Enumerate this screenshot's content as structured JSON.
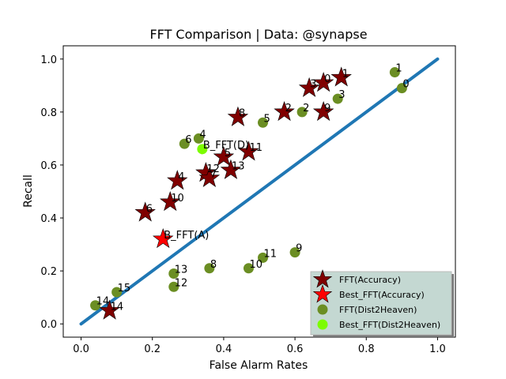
{
  "chart_data": {
    "type": "scatter",
    "title": "FFT Comparison |  Data: @synapse",
    "xlabel": "False Alarm Rates",
    "ylabel": "Recall",
    "xlim": [
      -0.05,
      1.05
    ],
    "ylim": [
      -0.05,
      1.05
    ],
    "xticks": [
      "0.0",
      "0.2",
      "0.4",
      "0.6",
      "0.8",
      "1.0"
    ],
    "yticks": [
      "0.0",
      "0.2",
      "0.4",
      "0.6",
      "0.8",
      "1.0"
    ],
    "diagonal": [
      [
        0,
        0
      ],
      [
        1,
        1
      ]
    ],
    "legend_position": "lower-right",
    "colors": {
      "accuracy": "#800000",
      "best_accuracy": "#ff0000",
      "dist2heaven": "#6b8e23",
      "best_dist2heaven": "#7cfc00",
      "diagonal": "#1f77b4"
    },
    "series": [
      {
        "name": "FFT(Accuracy)",
        "marker": "star",
        "points": [
          {
            "x": 0.73,
            "y": 0.93,
            "label": "1"
          },
          {
            "x": 0.68,
            "y": 0.91,
            "label": "0"
          },
          {
            "x": 0.64,
            "y": 0.89,
            "label": "3"
          },
          {
            "x": 0.68,
            "y": 0.8,
            "label": "9"
          },
          {
            "x": 0.57,
            "y": 0.8,
            "label": "2"
          },
          {
            "x": 0.44,
            "y": 0.78,
            "label": "8"
          },
          {
            "x": 0.47,
            "y": 0.65,
            "label": "11"
          },
          {
            "x": 0.4,
            "y": 0.63,
            "label": "5"
          },
          {
            "x": 0.42,
            "y": 0.58,
            "label": "13"
          },
          {
            "x": 0.35,
            "y": 0.57,
            "label": "12"
          },
          {
            "x": 0.36,
            "y": 0.55,
            "label": "7"
          },
          {
            "x": 0.27,
            "y": 0.54,
            "label": "4"
          },
          {
            "x": 0.25,
            "y": 0.46,
            "label": "10"
          },
          {
            "x": 0.18,
            "y": 0.42,
            "label": "6"
          },
          {
            "x": 0.08,
            "y": 0.05,
            "label": "14"
          }
        ]
      },
      {
        "name": "Best_FFT(Accuracy)",
        "marker": "star",
        "points": [
          {
            "x": 0.23,
            "y": 0.32,
            "label": "B_FFT(A)"
          }
        ]
      },
      {
        "name": "FFT(Dist2Heaven)",
        "marker": "circle",
        "points": [
          {
            "x": 0.88,
            "y": 0.95,
            "label": "1"
          },
          {
            "x": 0.9,
            "y": 0.89,
            "label": "0"
          },
          {
            "x": 0.72,
            "y": 0.85,
            "label": "3"
          },
          {
            "x": 0.62,
            "y": 0.8,
            "label": "2"
          },
          {
            "x": 0.51,
            "y": 0.76,
            "label": "5"
          },
          {
            "x": 0.33,
            "y": 0.7,
            "label": "4"
          },
          {
            "x": 0.29,
            "y": 0.68,
            "label": "6"
          },
          {
            "x": 0.6,
            "y": 0.27,
            "label": "9"
          },
          {
            "x": 0.51,
            "y": 0.25,
            "label": "11"
          },
          {
            "x": 0.47,
            "y": 0.21,
            "label": "10"
          },
          {
            "x": 0.36,
            "y": 0.21,
            "label": "8"
          },
          {
            "x": 0.26,
            "y": 0.19,
            "label": "13"
          },
          {
            "x": 0.26,
            "y": 0.14,
            "label": "12"
          },
          {
            "x": 0.1,
            "y": 0.12,
            "label": "15"
          },
          {
            "x": 0.04,
            "y": 0.07,
            "label": "14"
          }
        ]
      },
      {
        "name": "Best_FFT(Dist2Heaven)",
        "marker": "circle",
        "points": [
          {
            "x": 0.34,
            "y": 0.66,
            "label": "B_FFT(D)"
          }
        ]
      }
    ]
  }
}
